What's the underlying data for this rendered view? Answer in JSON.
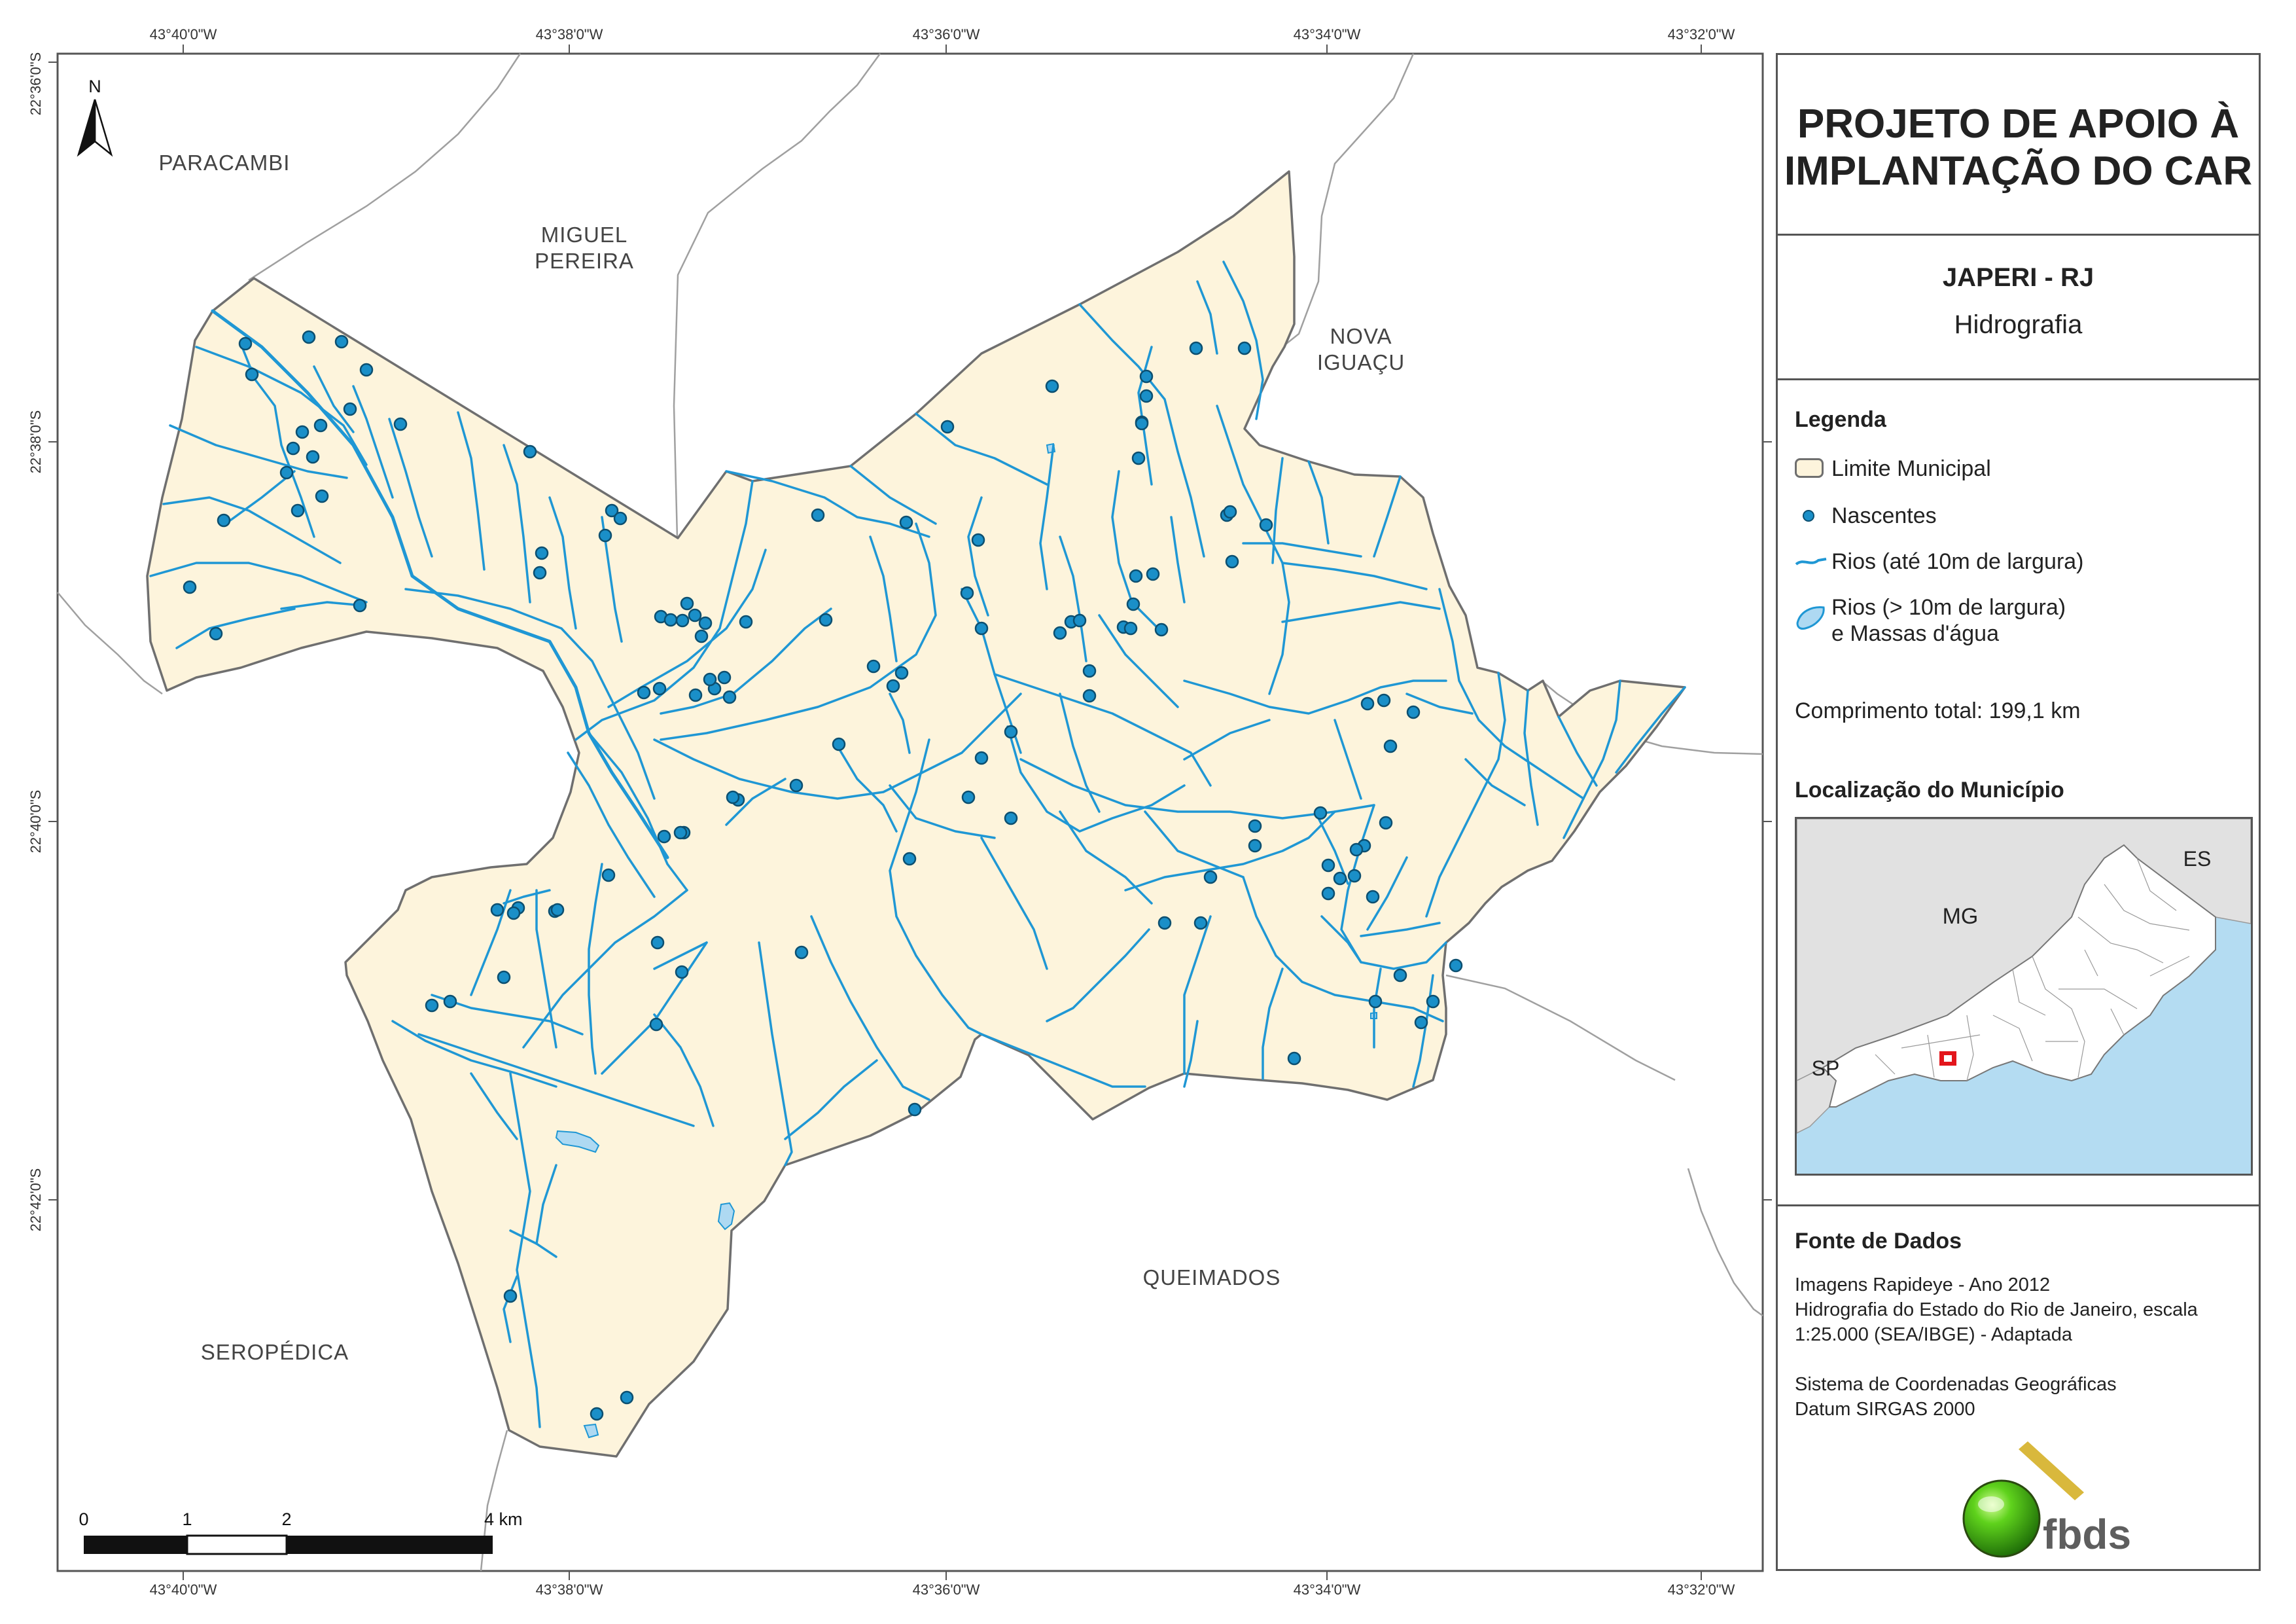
{
  "map": {
    "lon_labels": [
      "43°40'0\"W",
      "43°38'0\"W",
      "43°36'0\"W",
      "43°34'0\"W",
      "43°32'0\"W"
    ],
    "lat_labels": [
      "22°36'0\"S",
      "22°38'0\"S",
      "22°40'0\"S",
      "22°42'0\"S"
    ],
    "north_label": "N",
    "neighbors": {
      "paracambi": "PARACAMBI",
      "miguel_1": "MIGUEL",
      "miguel_2": "PEREIRA",
      "nova_1": "NOVA",
      "nova_2": "IGUAÇU",
      "queimados": "QUEIMADOS",
      "seropedica": "SEROPÉDICA"
    },
    "scale_bar": {
      "labels": [
        "0",
        "1",
        "2",
        "4 km"
      ]
    },
    "colors": {
      "municipality_fill": "#fdf4dc",
      "municipality_border": "#6f6f6f",
      "neighbor_border": "#a0a0a0",
      "river": "#1f97d4",
      "spring_fill": "#1a8fc8",
      "spring_stroke": "#0c4f70",
      "water_body": "#aed9f2"
    }
  },
  "panel": {
    "title_line1": "PROJETO DE APOIO À",
    "title_line2": "IMPLANTAÇÃO DO CAR",
    "municipality": "JAPERI - RJ",
    "theme": "Hidrografia",
    "legend": {
      "heading": "Legenda",
      "limit": "Limite Municipal",
      "springs": "Nascentes",
      "rivers_small": "Rios (até 10m de largura)",
      "rivers_large_1": "Rios (> 10m de largura)",
      "rivers_large_2": "e Massas d'água"
    },
    "total_length": "Comprimento total:  199,1 km",
    "location": {
      "heading": "Localização do Município",
      "labels": {
        "mg": "MG",
        "es": "ES",
        "sp": "SP"
      },
      "colors": {
        "state_fill": "#ffffff",
        "neighbors_fill": "#e1e1e1",
        "sea": "#b4dcf2",
        "highlight": "#e3161c"
      }
    },
    "source": {
      "heading": "Fonte de Dados",
      "line1": "Imagens Rapideye - Ano 2012",
      "line2": "Hidrografia do Estado do Rio de Janeiro, escala",
      "line3": "1:25.000 (SEA/IBGE) - Adaptada",
      "line4": "Sistema de Coordenadas Geográficas",
      "line5": "Datum SIRGAS 2000"
    },
    "logo_text": "fbds"
  }
}
